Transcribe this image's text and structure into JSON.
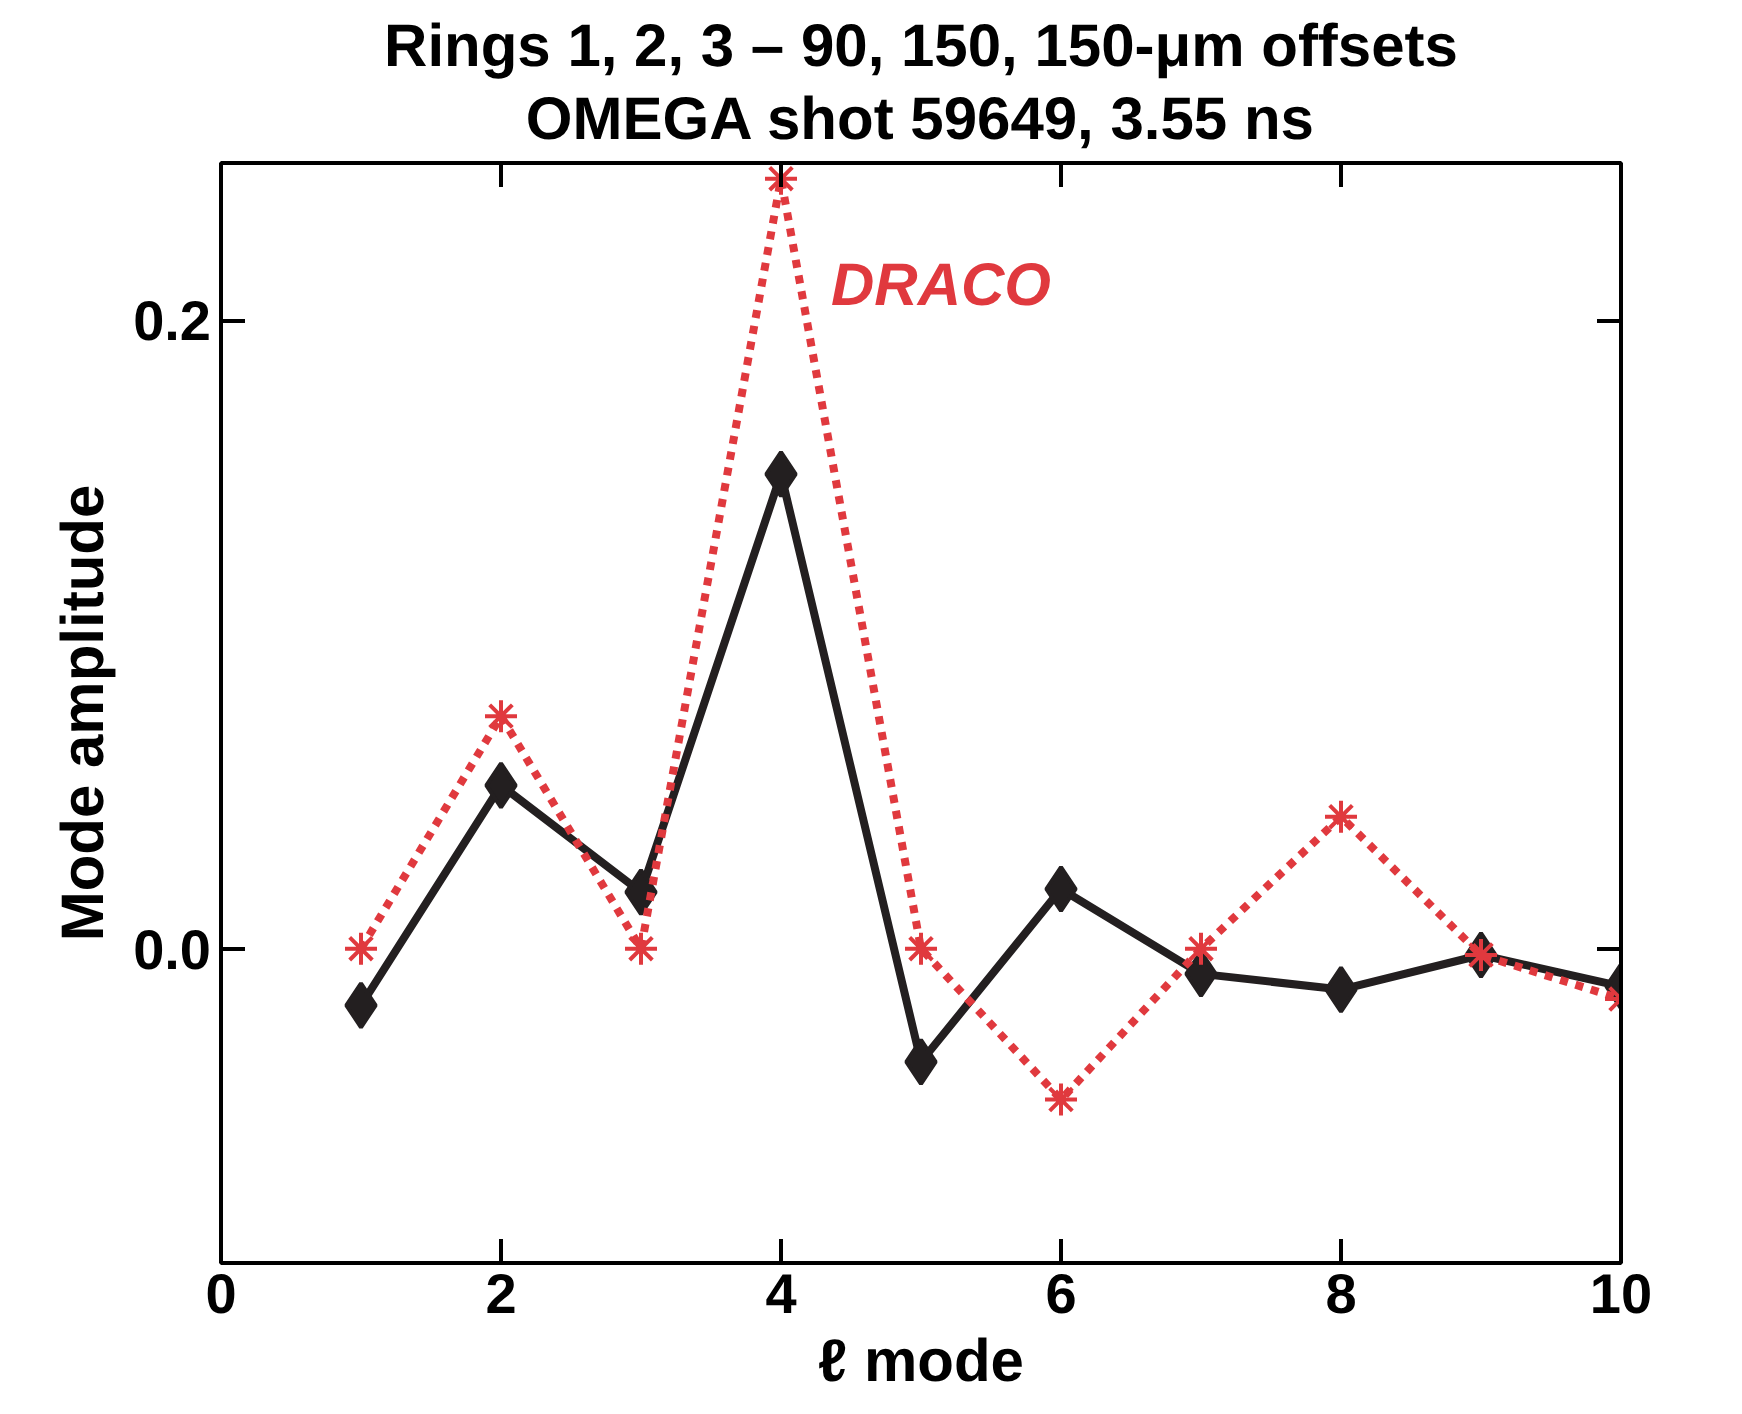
{
  "chart_data": {
    "type": "line",
    "title": "Rings 1, 2, 3 – 90, 150, 150-μm offsets\nOMEGA shot 59649, 3.55 ns",
    "xlabel": "ℓ mode",
    "ylabel": "Mode amplitude",
    "x": [
      1,
      2,
      3,
      4,
      5,
      6,
      7,
      8,
      9,
      10
    ],
    "series": [
      {
        "color": "#231f20",
        "marker": "diamond",
        "line_style": "solid",
        "values": [
          -0.018,
          0.052,
          0.018,
          0.151,
          -0.036,
          0.019,
          -0.008,
          -0.013,
          -0.002,
          -0.012
        ]
      },
      {
        "name": "DRACO",
        "color": "#e0393e",
        "marker": "cross",
        "line_style": "dotted",
        "values": [
          0.0,
          0.074,
          0.0,
          0.245,
          0.0,
          -0.048,
          0.0,
          0.042,
          -0.002,
          -0.016
        ]
      }
    ],
    "xlim": [
      0,
      10
    ],
    "ylim": [
      -0.1,
      0.25
    ],
    "xticks": [
      0,
      2,
      4,
      6,
      8,
      10
    ],
    "yticks": [
      {
        "value": 0.0,
        "label": "0.0"
      },
      {
        "value": 0.2,
        "label": "0.2"
      }
    ]
  }
}
